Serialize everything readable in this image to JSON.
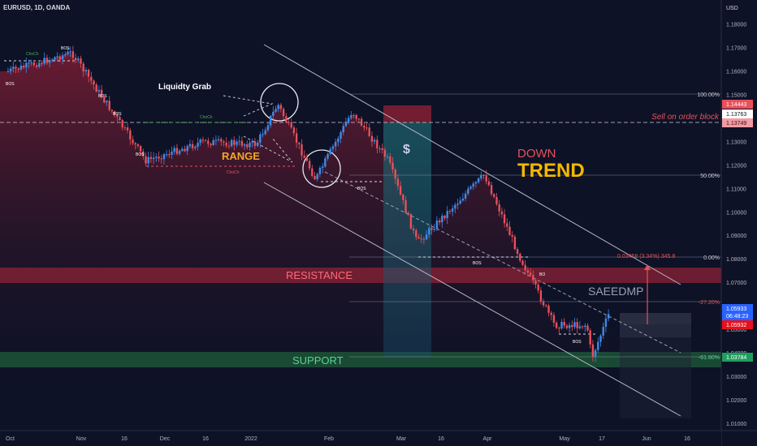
{
  "header": {
    "symbol": "EURUSD, 1D, OANDA"
  },
  "currency": "USD",
  "colors": {
    "background": "#0d1226",
    "bull": "#3d8ae8",
    "bear": "#e8505b",
    "resistance": "#8c2136",
    "support": "#1d5c3a",
    "range_text": "#f5a623",
    "trend_text": "#f5b800",
    "down_text": "#e8505b"
  },
  "annotations": {
    "liquidity_grab": "Liquidty Grab",
    "range": "RANGE",
    "down": "DOWN",
    "trend": "TREND",
    "resistance": "RESISTANCE",
    "support": "SUPPORT",
    "sell": "Sell on order block",
    "watermark": "SAEEDMP",
    "dollar": "$",
    "fib_100": "100.00%",
    "fib_50": "50.00%",
    "fib_0": "0.00%",
    "fib_n272": "-27.20%",
    "fib_n618": "-61.80%",
    "fib_stats": "0.03458 (3.34%) 345.8",
    "choch": "ChoCh",
    "bos": "BOS",
    "bo": "BO"
  },
  "price_tags": {
    "t1": "1.14443",
    "t2": "1.13763",
    "t3": "1.13749",
    "current": "1.05933",
    "countdown": "06:48:23",
    "t5": "1.05932",
    "t6": "1.03784"
  },
  "chart_data": {
    "type": "candlestick",
    "title": "",
    "ylim": [
      1.005,
      1.19
    ],
    "y_ticks": [
      "1.18000",
      "1.17000",
      "1.16000",
      "1.15000",
      "1.14000",
      "1.13000",
      "1.12000",
      "1.11000",
      "1.10000",
      "1.09000",
      "1.08000",
      "1.07000",
      "1.06000",
      "1.05000",
      "1.04000",
      "1.03000",
      "1.02000",
      "1.01000"
    ],
    "x_ticks": [
      "Oct",
      "Nov",
      "16",
      "Dec",
      "16",
      "2022",
      "Feb",
      "Mar",
      "16",
      "Apr",
      "May",
      "17",
      "Jun",
      "16"
    ],
    "close_path": [
      {
        "x": "Oct 1",
        "y": 1.16
      },
      {
        "x": "Oct 15",
        "y": 1.164
      },
      {
        "x": "Oct 28",
        "y": 1.168
      },
      {
        "x": "Nov 10",
        "y": 1.146
      },
      {
        "x": "Nov 24",
        "y": 1.122
      },
      {
        "x": "Dec 15",
        "y": 1.13
      },
      {
        "x": "Jan 5",
        "y": 1.129
      },
      {
        "x": "Jan 13",
        "y": 1.146
      },
      {
        "x": "Jan 27",
        "y": 1.114
      },
      {
        "x": "Feb 10",
        "y": 1.143
      },
      {
        "x": "Feb 24",
        "y": 1.122
      },
      {
        "x": "Mar 7",
        "y": 1.087
      },
      {
        "x": "Mar 31",
        "y": 1.116
      },
      {
        "x": "Apr 14",
        "y": 1.081
      },
      {
        "x": "Apr 28",
        "y": 1.052
      },
      {
        "x": "May 11",
        "y": 1.052
      },
      {
        "x": "May 13",
        "y": 1.038
      },
      {
        "x": "May 20",
        "y": 1.059
      }
    ]
  }
}
